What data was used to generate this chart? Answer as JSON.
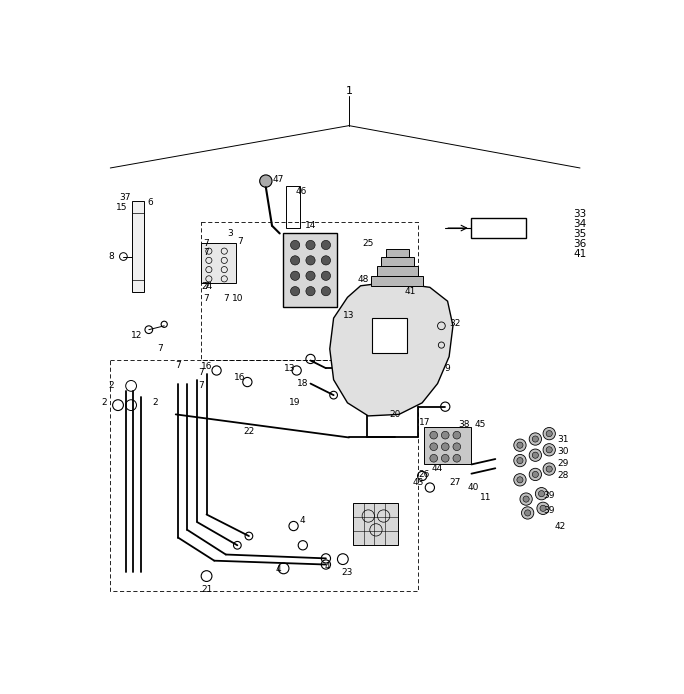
{
  "background_color": "#ffffff",
  "figsize": [
    6.84,
    6.94
  ],
  "dpi": 100,
  "lw_thin": 0.7,
  "lw_med": 1.0,
  "lw_hose": 1.3
}
